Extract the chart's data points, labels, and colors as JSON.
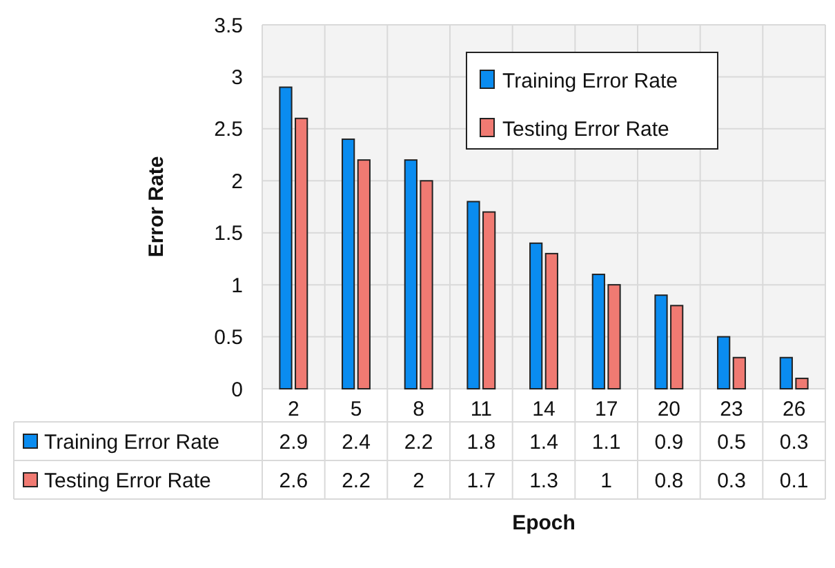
{
  "chart_data": {
    "type": "bar",
    "xlabel": "Epoch",
    "ylabel": "Error Rate",
    "categories": [
      "2",
      "5",
      "8",
      "11",
      "14",
      "17",
      "20",
      "23",
      "26"
    ],
    "series": [
      {
        "name": "Training Error Rate",
        "color": "#0a8cf0",
        "values": [
          2.9,
          2.4,
          2.2,
          1.8,
          1.4,
          1.1,
          0.9,
          0.5,
          0.3
        ]
      },
      {
        "name": "Testing Error Rate",
        "color": "#f07a72",
        "values": [
          2.6,
          2.2,
          2,
          1.7,
          1.3,
          1,
          0.8,
          0.3,
          0.1
        ]
      }
    ],
    "ylim": [
      0,
      3.5
    ],
    "yticks": [
      0,
      0.5,
      1,
      1.5,
      2,
      2.5,
      3,
      3.5
    ],
    "grid": true,
    "legend": "top right",
    "data_labels": true
  }
}
